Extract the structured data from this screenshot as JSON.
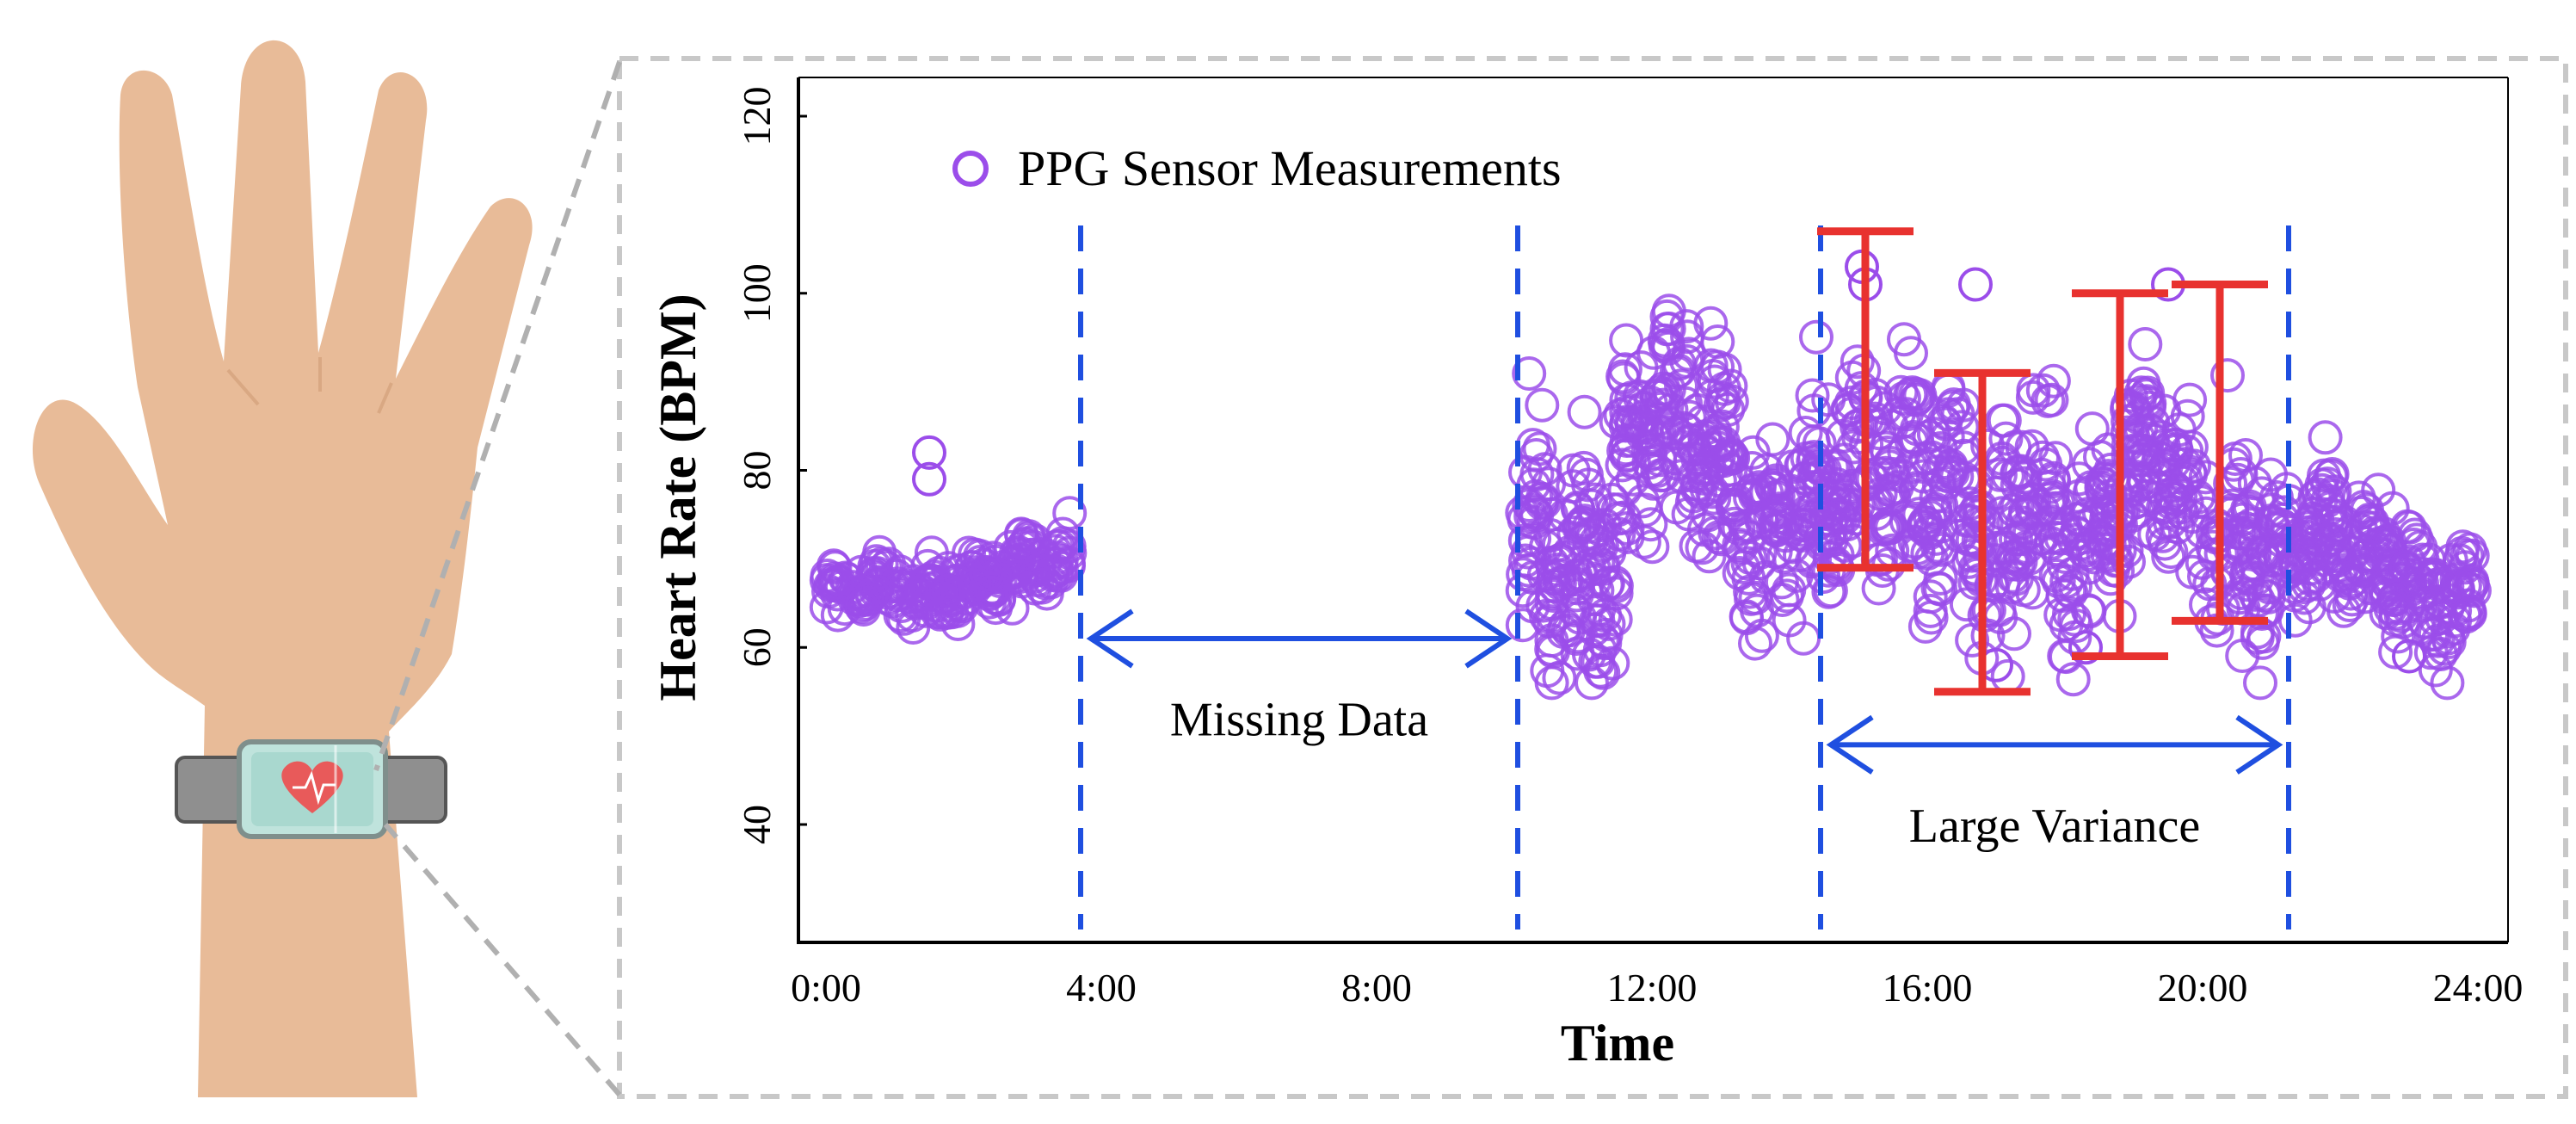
{
  "colors": {
    "points": "#9b4dea",
    "span_lines": "#1f4fe0",
    "variance_bars": "#e8322f",
    "skin": "#e8bb98",
    "band": "#8f8f8f",
    "frame": "#c8c8c8"
  },
  "icons": {
    "hand": "hand-with-wearable-icon",
    "watch": "heart-rate-watch-icon"
  },
  "chart_data": {
    "type": "scatter",
    "title": "",
    "xlabel": "Time",
    "ylabel": "Heart Rate (BPM)",
    "xlim": [
      0,
      24
    ],
    "ylim": [
      26,
      124
    ],
    "x_tick_labels": [
      "0:00",
      "4:00",
      "8:00",
      "12:00",
      "16:00",
      "20:00",
      "24:00"
    ],
    "x_tick_values": [
      0,
      4,
      8,
      12,
      16,
      20,
      24
    ],
    "y_tick_labels": [
      "40",
      "60",
      "80",
      "100",
      "120"
    ],
    "y_tick_values": [
      40,
      60,
      80,
      100,
      120
    ],
    "legend": {
      "label": "PPG Sensor Measurements",
      "position": "top-left"
    },
    "series": [
      {
        "name": "PPG Sensor Measurements",
        "marker": "open-circle",
        "segments": [
          {
            "x_range": [
              0.0,
              3.55
            ],
            "trend": [
              [
                0.0,
                66
              ],
              [
                0.8,
                67
              ],
              [
                1.5,
                66
              ],
              [
                2.5,
                68
              ],
              [
                3.55,
                70
              ]
            ],
            "spread": 3,
            "count": 230
          },
          {
            "x_range": [
              10.1,
              14.5
            ],
            "trend": [
              [
                10.1,
                72
              ],
              [
                10.7,
                70
              ],
              [
                11.3,
                68
              ],
              [
                11.8,
                84
              ],
              [
                12.4,
                87
              ],
              [
                13.0,
                80
              ],
              [
                13.5,
                73
              ],
              [
                14.0,
                76
              ],
              [
                14.5,
                75
              ]
            ],
            "spread": 10,
            "count": 420
          },
          {
            "x_range": [
              14.5,
              21.0
            ],
            "trend": [
              [
                14.5,
                76
              ],
              [
                15.2,
                82
              ],
              [
                15.8,
                80
              ],
              [
                16.5,
                78
              ],
              [
                17.0,
                68
              ],
              [
                17.5,
                80
              ],
              [
                18.0,
                70
              ],
              [
                18.7,
                76
              ],
              [
                19.3,
                84
              ],
              [
                20.0,
                72
              ],
              [
                21.0,
                70
              ]
            ],
            "spread": 10,
            "count": 560
          },
          {
            "x_range": [
              21.0,
              23.95
            ],
            "trend": [
              [
                21.0,
                70
              ],
              [
                21.8,
                72
              ],
              [
                22.6,
                70
              ],
              [
                23.2,
                66
              ],
              [
                23.95,
                66
              ]
            ],
            "spread": 6,
            "count": 240
          }
        ],
        "outliers": [
          {
            "x": 1.5,
            "y": 82
          },
          {
            "x": 1.5,
            "y": 79
          },
          {
            "x": 15.05,
            "y": 103
          },
          {
            "x": 15.1,
            "y": 101
          },
          {
            "x": 16.7,
            "y": 101
          },
          {
            "x": 19.5,
            "y": 101
          },
          {
            "x": 17.0,
            "y": 58
          },
          {
            "x": 18.3,
            "y": 60
          },
          {
            "x": 23.0,
            "y": 59
          }
        ]
      }
    ],
    "vertical_lines": [
      {
        "name": "missing-start",
        "x": 3.7
      },
      {
        "name": "missing-end",
        "x": 10.05
      },
      {
        "name": "variance-start",
        "x": 14.45
      },
      {
        "name": "variance-end",
        "x": 21.25
      }
    ],
    "annotations": [
      {
        "name": "missing-data",
        "text": "Missing Data",
        "x_from": 3.7,
        "x_to": 10.05,
        "arrow_y": 61,
        "text_y": 52
      },
      {
        "name": "large-variance",
        "text": "Large Variance",
        "x_from": 14.45,
        "x_to": 21.25,
        "arrow_y": 49,
        "text_y": 40
      }
    ],
    "variance_bars": [
      {
        "x": 15.1,
        "low": 69,
        "high": 107
      },
      {
        "x": 16.8,
        "low": 55,
        "high": 91
      },
      {
        "x": 18.8,
        "low": 59,
        "high": 100
      },
      {
        "x": 20.25,
        "low": 63,
        "high": 101
      }
    ]
  }
}
